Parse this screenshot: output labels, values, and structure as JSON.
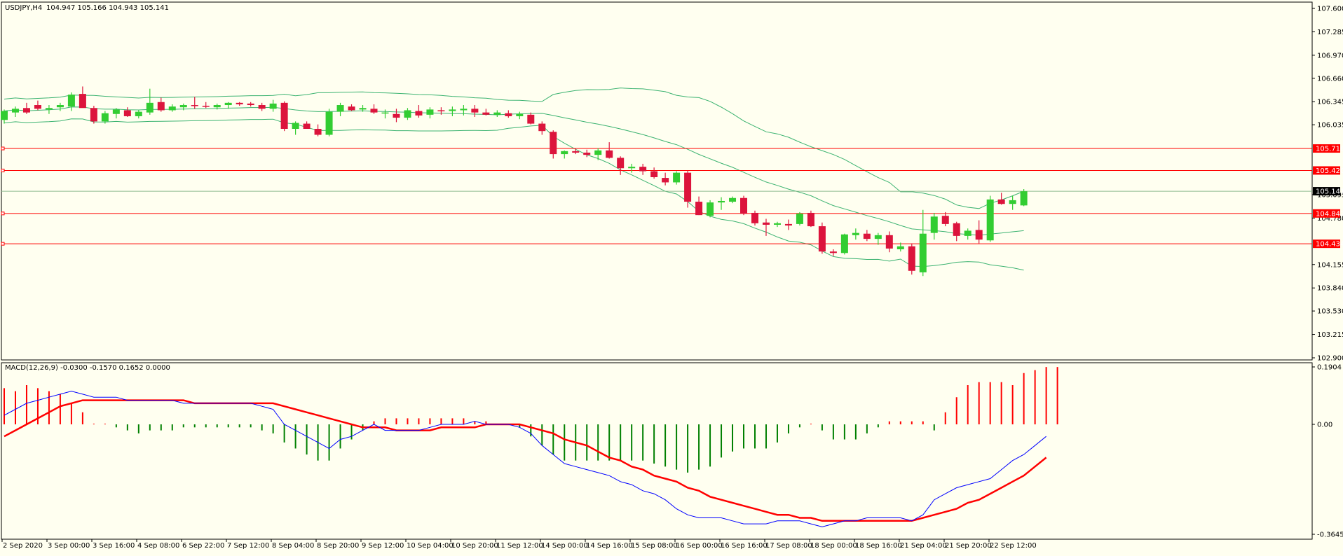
{
  "chart_data": [
    {
      "type": "candlestick",
      "title": "USDJPY,H4",
      "ohlc_readout": "104.947 105.166 104.943 105.141",
      "current_price": "105.141",
      "ylim": [
        102.9,
        107.6
      ],
      "ytick_labels": [
        "107.600",
        "107.285",
        "106.970",
        "106.660",
        "106.345",
        "106.035",
        "105.095",
        "104.780",
        "104.155",
        "103.840",
        "103.530",
        "103.215",
        "102.900"
      ],
      "colors": {
        "bull": "#32cd32",
        "bear": "#dc143c",
        "band": "#3cb371",
        "level": "#ff0000",
        "background": "#fffff0"
      },
      "levels": [
        {
          "price": 105.716,
          "label": "105.716"
        },
        {
          "price": 105.42,
          "label": "105.420"
        },
        {
          "price": 104.842,
          "label": "104.842"
        },
        {
          "price": 104.434,
          "label": "104.434"
        }
      ],
      "x_tick_labels": [
        "2 Sep 2020",
        "3 Sep 00:00",
        "3 Sep 16:00",
        "4 Sep 08:00",
        "6 Sep 22:00",
        "7 Sep 12:00",
        "8 Sep 04:00",
        "8 Sep 20:00",
        "9 Sep 12:00",
        "10 Sep 04:00",
        "10 Sep 20:00",
        "11 Sep 12:00",
        "14 Sep 00:00",
        "14 Sep 16:00",
        "15 Sep 08:00",
        "16 Sep 00:00",
        "16 Sep 16:00",
        "17 Sep 08:00",
        "18 Sep 00:00",
        "18 Sep 16:00",
        "21 Sep 04:00",
        "21 Sep 20:00",
        "22 Sep 12:00"
      ],
      "candles": [
        [
          106.1,
          106.24,
          106.05,
          106.22
        ],
        [
          106.2,
          106.28,
          106.14,
          106.25
        ],
        [
          106.26,
          106.33,
          106.18,
          106.2
        ],
        [
          106.3,
          106.36,
          106.23,
          106.25
        ],
        [
          106.24,
          106.3,
          106.18,
          106.26
        ],
        [
          106.27,
          106.33,
          106.22,
          106.3
        ],
        [
          106.28,
          106.47,
          106.22,
          106.44
        ],
        [
          106.45,
          106.55,
          106.3,
          106.26
        ],
        [
          106.26,
          106.29,
          106.05,
          106.08
        ],
        [
          106.08,
          106.22,
          106.05,
          106.19
        ],
        [
          106.18,
          106.26,
          106.12,
          106.24
        ],
        [
          106.23,
          106.27,
          106.14,
          106.15
        ],
        [
          106.15,
          106.23,
          106.12,
          106.21
        ],
        [
          106.2,
          106.52,
          106.17,
          106.33
        ],
        [
          106.34,
          106.4,
          106.21,
          106.23
        ],
        [
          106.23,
          106.31,
          106.21,
          106.28
        ],
        [
          106.27,
          106.32,
          106.23,
          106.3
        ],
        [
          106.3,
          106.41,
          106.25,
          106.29
        ],
        [
          106.29,
          106.34,
          106.26,
          106.28
        ],
        [
          106.27,
          106.32,
          106.24,
          106.3
        ],
        [
          106.3,
          106.34,
          106.25,
          106.33
        ],
        [
          106.33,
          106.34,
          106.29,
          106.31
        ],
        [
          106.32,
          106.34,
          106.28,
          106.3
        ],
        [
          106.3,
          106.33,
          106.22,
          106.25
        ],
        [
          106.25,
          106.37,
          106.21,
          106.32
        ],
        [
          106.33,
          106.35,
          105.95,
          105.98
        ],
        [
          105.98,
          106.08,
          105.9,
          106.06
        ],
        [
          106.05,
          106.08,
          105.98,
          105.98
        ],
        [
          105.98,
          106.04,
          105.88,
          105.9
        ],
        [
          105.9,
          106.25,
          105.88,
          106.21
        ],
        [
          106.21,
          106.33,
          106.15,
          106.3
        ],
        [
          106.28,
          106.31,
          106.22,
          106.23
        ],
        [
          106.24,
          106.3,
          106.21,
          106.26
        ],
        [
          106.25,
          106.31,
          106.18,
          106.2
        ],
        [
          106.2,
          106.24,
          106.12,
          106.2
        ],
        [
          106.18,
          106.25,
          106.07,
          106.13
        ],
        [
          106.13,
          106.26,
          106.1,
          106.23
        ],
        [
          106.22,
          106.3,
          106.13,
          106.16
        ],
        [
          106.17,
          106.27,
          106.12,
          106.24
        ],
        [
          106.23,
          106.27,
          106.17,
          106.22
        ],
        [
          106.22,
          106.28,
          106.15,
          106.24
        ],
        [
          106.23,
          106.3,
          106.16,
          106.25
        ],
        [
          106.25,
          106.3,
          106.14,
          106.2
        ],
        [
          106.2,
          106.25,
          106.16,
          106.17
        ],
        [
          106.17,
          106.23,
          106.14,
          106.2
        ],
        [
          106.19,
          106.23,
          106.13,
          106.15
        ],
        [
          106.15,
          106.21,
          106.11,
          106.18
        ],
        [
          106.17,
          106.2,
          106.04,
          106.05
        ],
        [
          106.05,
          106.08,
          105.9,
          105.95
        ],
        [
          105.94,
          105.96,
          105.58,
          105.64
        ],
        [
          105.64,
          105.69,
          105.58,
          105.68
        ],
        [
          105.68,
          105.71,
          105.64,
          105.66
        ],
        [
          105.66,
          105.7,
          105.6,
          105.63
        ],
        [
          105.63,
          105.72,
          105.56,
          105.69
        ],
        [
          105.69,
          105.8,
          105.58,
          105.59
        ],
        [
          105.59,
          105.61,
          105.36,
          105.45
        ],
        [
          105.45,
          105.51,
          105.39,
          105.47
        ],
        [
          105.47,
          105.51,
          105.36,
          105.41
        ],
        [
          105.41,
          105.46,
          105.31,
          105.33
        ],
        [
          105.32,
          105.39,
          105.22,
          105.26
        ],
        [
          105.26,
          105.41,
          105.23,
          105.39
        ],
        [
          105.39,
          105.42,
          104.92,
          105.0
        ],
        [
          105.0,
          105.07,
          104.82,
          104.82
        ],
        [
          104.81,
          105.02,
          104.79,
          104.99
        ],
        [
          104.99,
          105.06,
          104.89,
          105.01
        ],
        [
          105.0,
          105.07,
          104.98,
          105.05
        ],
        [
          105.05,
          105.08,
          104.82,
          104.84
        ],
        [
          104.85,
          104.88,
          104.68,
          104.71
        ],
        [
          104.72,
          104.77,
          104.54,
          104.69
        ],
        [
          104.69,
          104.73,
          104.66,
          104.71
        ],
        [
          104.7,
          104.76,
          104.62,
          104.68
        ],
        [
          104.7,
          104.86,
          104.68,
          104.84
        ],
        [
          104.85,
          104.88,
          104.66,
          104.67
        ],
        [
          104.67,
          104.72,
          104.3,
          104.33
        ],
        [
          104.33,
          104.36,
          104.27,
          104.31
        ],
        [
          104.31,
          104.57,
          104.29,
          104.56
        ],
        [
          104.55,
          104.64,
          104.49,
          104.58
        ],
        [
          104.57,
          104.62,
          104.47,
          104.5
        ],
        [
          104.5,
          104.58,
          104.42,
          104.55
        ],
        [
          104.55,
          104.6,
          104.32,
          104.37
        ],
        [
          104.36,
          104.45,
          104.33,
          104.4
        ],
        [
          104.4,
          104.44,
          104.02,
          104.07
        ],
        [
          104.05,
          104.89,
          104.0,
          104.57
        ],
        [
          104.58,
          104.85,
          104.49,
          104.8
        ],
        [
          104.81,
          104.86,
          104.67,
          104.7
        ],
        [
          104.71,
          104.73,
          104.47,
          104.54
        ],
        [
          104.54,
          104.64,
          104.49,
          104.61
        ],
        [
          104.62,
          104.75,
          104.44,
          104.49
        ],
        [
          104.48,
          105.08,
          104.46,
          105.03
        ],
        [
          105.03,
          105.12,
          104.96,
          104.97
        ],
        [
          104.97,
          105.08,
          104.89,
          105.02
        ],
        [
          104.95,
          105.17,
          104.94,
          105.14
        ]
      ]
    },
    {
      "type": "macd",
      "title": "MACD(12,26,9) -0.0300 -0.1570 0.1652 0.0000",
      "ylim": [
        -0.3645,
        0.1904
      ],
      "ytick_labels": [
        "0.1904",
        "0.00",
        "-0.3645"
      ],
      "colors": {
        "hist_pos": "#ff0000",
        "hist_neg": "#008000",
        "signal": "#ff0000",
        "macd": "#0000ff"
      },
      "histogram": [
        0.12,
        0.11,
        0.13,
        0.12,
        0.11,
        0.1,
        0.07,
        0.04,
        0.0,
        0.0,
        -0.01,
        -0.02,
        -0.03,
        -0.02,
        -0.02,
        -0.02,
        -0.01,
        -0.01,
        -0.01,
        -0.01,
        -0.01,
        -0.01,
        -0.01,
        -0.02,
        -0.03,
        -0.06,
        -0.08,
        -0.1,
        -0.12,
        -0.12,
        -0.08,
        -0.05,
        -0.02,
        0.01,
        0.02,
        0.02,
        0.02,
        0.02,
        0.02,
        0.02,
        0.02,
        0.02,
        0.01,
        0.01,
        0.0,
        0.0,
        -0.01,
        -0.04,
        -0.07,
        -0.1,
        -0.12,
        -0.12,
        -0.12,
        -0.12,
        -0.12,
        -0.12,
        -0.12,
        -0.12,
        -0.13,
        -0.14,
        -0.15,
        -0.16,
        -0.15,
        -0.14,
        -0.11,
        -0.09,
        -0.08,
        -0.08,
        -0.08,
        -0.06,
        -0.03,
        -0.01,
        0.0,
        -0.02,
        -0.05,
        -0.05,
        -0.05,
        -0.03,
        -0.01,
        0.01,
        0.01,
        0.01,
        0.01,
        -0.02,
        0.04,
        0.09,
        0.13,
        0.14,
        0.14,
        0.14,
        0.13,
        0.17,
        0.18,
        0.19,
        0.19
      ],
      "macd": [
        0.03,
        0.05,
        0.07,
        0.08,
        0.09,
        0.1,
        0.11,
        0.1,
        0.09,
        0.09,
        0.09,
        0.08,
        0.08,
        0.08,
        0.08,
        0.08,
        0.07,
        0.07,
        0.07,
        0.07,
        0.07,
        0.07,
        0.07,
        0.06,
        0.05,
        0.0,
        -0.02,
        -0.04,
        -0.06,
        -0.08,
        -0.05,
        -0.04,
        -0.02,
        0.0,
        -0.02,
        -0.02,
        -0.02,
        -0.02,
        -0.01,
        0.0,
        0.0,
        0.0,
        0.01,
        0.0,
        0.0,
        0.0,
        -0.01,
        -0.03,
        -0.07,
        -0.1,
        -0.13,
        -0.14,
        -0.15,
        -0.16,
        -0.17,
        -0.19,
        -0.2,
        -0.22,
        -0.23,
        -0.25,
        -0.28,
        -0.3,
        -0.31,
        -0.31,
        -0.31,
        -0.32,
        -0.33,
        -0.33,
        -0.33,
        -0.32,
        -0.32,
        -0.32,
        -0.33,
        -0.34,
        -0.33,
        -0.32,
        -0.32,
        -0.31,
        -0.31,
        -0.31,
        -0.31,
        -0.32,
        -0.3,
        -0.25,
        -0.23,
        -0.21,
        -0.2,
        -0.19,
        -0.18,
        -0.15,
        -0.12,
        -0.1,
        -0.07,
        -0.04
      ],
      "signal": [
        -0.04,
        -0.02,
        0.0,
        0.02,
        0.04,
        0.06,
        0.07,
        0.08,
        0.08,
        0.08,
        0.08,
        0.08,
        0.08,
        0.08,
        0.08,
        0.08,
        0.08,
        0.07,
        0.07,
        0.07,
        0.07,
        0.07,
        0.07,
        0.07,
        0.07,
        0.06,
        0.05,
        0.04,
        0.03,
        0.02,
        0.01,
        0.0,
        -0.01,
        -0.01,
        -0.01,
        -0.02,
        -0.02,
        -0.02,
        -0.02,
        -0.01,
        -0.01,
        -0.01,
        -0.01,
        0.0,
        0.0,
        0.0,
        0.0,
        -0.01,
        -0.02,
        -0.03,
        -0.05,
        -0.06,
        -0.07,
        -0.09,
        -0.11,
        -0.12,
        -0.14,
        -0.15,
        -0.17,
        -0.18,
        -0.19,
        -0.21,
        -0.22,
        -0.24,
        -0.25,
        -0.26,
        -0.27,
        -0.28,
        -0.29,
        -0.3,
        -0.3,
        -0.31,
        -0.31,
        -0.32,
        -0.32,
        -0.32,
        -0.32,
        -0.32,
        -0.32,
        -0.32,
        -0.32,
        -0.32,
        -0.31,
        -0.3,
        -0.29,
        -0.28,
        -0.26,
        -0.25,
        -0.23,
        -0.21,
        -0.19,
        -0.17,
        -0.14,
        -0.11
      ]
    }
  ]
}
